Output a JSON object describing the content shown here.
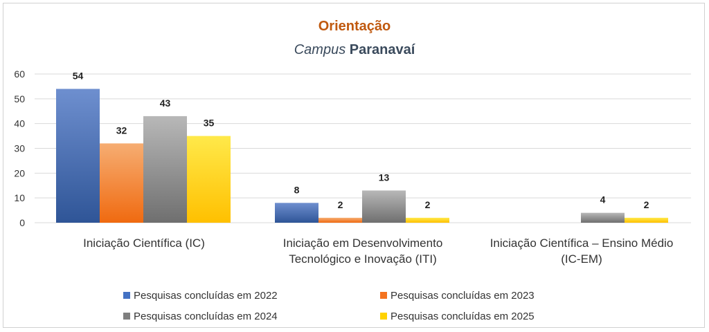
{
  "chart_data": {
    "type": "bar",
    "title": "Orientação",
    "subtitle_italic": "Campus",
    "subtitle_rest": "Paranavaí",
    "categories": [
      [
        "Iniciação Científica (IC)"
      ],
      [
        "Iniciação em Desenvolvimento",
        "Tecnológico e Inovação (ITI)"
      ],
      [
        "Iniciação Científica – Ensino Médio",
        "(IC-EM)"
      ]
    ],
    "series": [
      {
        "name": "Pesquisas concluídas em 2022",
        "values": [
          54,
          8,
          null
        ]
      },
      {
        "name": "Pesquisas concluídas em 2023",
        "values": [
          32,
          2,
          null
        ]
      },
      {
        "name": "Pesquisas concluídas em 2024",
        "values": [
          43,
          13,
          4
        ]
      },
      {
        "name": "Pesquisas concluídas em 2025",
        "values": [
          35,
          2,
          2
        ]
      }
    ],
    "yticks": [
      "0",
      "10",
      "20",
      "30",
      "40",
      "50",
      "60"
    ],
    "ylim": [
      0,
      60
    ],
    "grid": true,
    "legend_position": "bottom",
    "colors": {
      "title": "#c0590f",
      "subtitle": "#3a4a5c",
      "series": [
        [
          "#6e8fcf",
          "#2f5597"
        ],
        [
          "#f6ad72",
          "#f06a10"
        ],
        [
          "#b8b8b8",
          "#6f6f6f"
        ],
        [
          "#ffe94a",
          "#ffc000"
        ]
      ],
      "legend": [
        "#4472c4",
        "#f4731f",
        "#7f7f7f",
        "#ffd200"
      ]
    }
  }
}
